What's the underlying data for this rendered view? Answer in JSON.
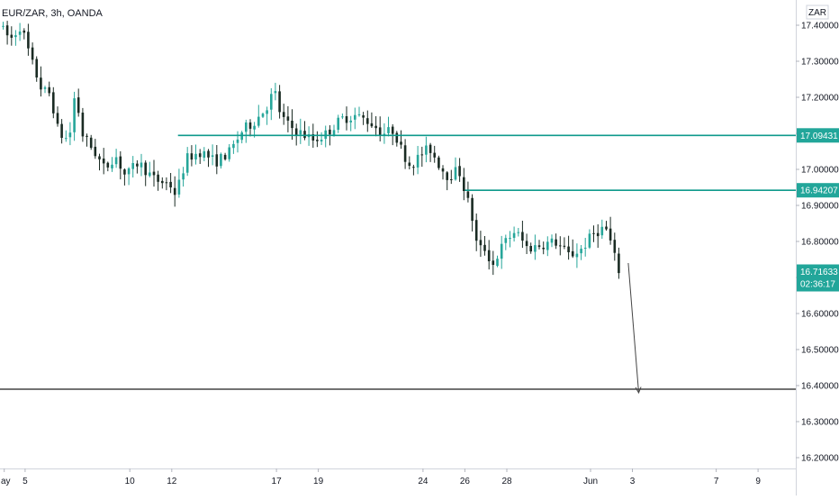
{
  "header": {
    "symbol_label": "EUR/ZAR, 3h, OANDA"
  },
  "currency_badge": "ZAR",
  "colors": {
    "up": "#26a69a",
    "down": "#1a2b23",
    "level_line": "#0f9a8c",
    "support_line": "#444444",
    "arrow": "#444444",
    "label_bg": "#22a69a",
    "text": "#131722",
    "axis_line": "#d1d4dc"
  },
  "chart_data": {
    "type": "candlestick",
    "y_ticks": [
      "17.40000",
      "17.30000",
      "17.20000",
      "17.10000",
      "17.00000",
      "16.90000",
      "16.80000",
      "16.70000",
      "16.60000",
      "16.50000",
      "16.40000",
      "16.30000",
      "16.20000"
    ],
    "y_tick_values": [
      17.4,
      17.3,
      17.2,
      17.1,
      17.0,
      16.9,
      16.8,
      16.7,
      16.6,
      16.5,
      16.4,
      16.3,
      16.2
    ],
    "ylim": [
      16.17,
      17.47
    ],
    "x_ticks": [
      "ay",
      "5",
      "10",
      "12",
      "17",
      "19",
      "24",
      "26",
      "28",
      "Jun",
      "3",
      "7",
      "9"
    ],
    "x_tick_days": [
      4,
      5,
      10,
      12,
      17,
      19,
      24,
      26,
      28,
      32,
      34,
      38,
      40
    ],
    "xlim": [
      3.8,
      41.8
    ],
    "candle_x_range": [
      3.95,
      33.5
    ],
    "price_points": [
      [
        3.95,
        17.4
      ],
      [
        4.5,
        17.36
      ],
      [
        5.0,
        17.4
      ],
      [
        5.5,
        17.3
      ],
      [
        6.0,
        17.22
      ],
      [
        6.4,
        17.21
      ],
      [
        6.8,
        17.1
      ],
      [
        7.3,
        17.08
      ],
      [
        7.6,
        17.22
      ],
      [
        7.9,
        17.1
      ],
      [
        8.5,
        17.05
      ],
      [
        9.0,
        17.0
      ],
      [
        9.5,
        17.04
      ],
      [
        10.0,
        16.98
      ],
      [
        10.6,
        17.02
      ],
      [
        11.4,
        16.97
      ],
      [
        12.1,
        16.96
      ],
      [
        12.4,
        16.93
      ],
      [
        12.9,
        17.03
      ],
      [
        13.6,
        17.05
      ],
      [
        14.3,
        17.02
      ],
      [
        15.0,
        17.05
      ],
      [
        15.6,
        17.11
      ],
      [
        16.1,
        17.13
      ],
      [
        16.7,
        17.17
      ],
      [
        17.1,
        17.22
      ],
      [
        17.4,
        17.15
      ],
      [
        17.8,
        17.12
      ],
      [
        18.4,
        17.1
      ],
      [
        19.0,
        17.08
      ],
      [
        19.6,
        17.1
      ],
      [
        20.3,
        17.14
      ],
      [
        21.0,
        17.15
      ],
      [
        21.7,
        17.13
      ],
      [
        22.3,
        17.1
      ],
      [
        22.8,
        17.11
      ],
      [
        23.2,
        17.05
      ],
      [
        23.6,
        17.01
      ],
      [
        24.1,
        17.04
      ],
      [
        24.5,
        17.06
      ],
      [
        25.0,
        17.01
      ],
      [
        25.4,
        16.98
      ],
      [
        25.9,
        17.0
      ],
      [
        26.2,
        16.94
      ],
      [
        26.5,
        16.88
      ],
      [
        26.8,
        16.78
      ],
      [
        27.2,
        16.78
      ],
      [
        27.5,
        16.73
      ],
      [
        28.0,
        16.79
      ],
      [
        28.6,
        16.83
      ],
      [
        29.2,
        16.78
      ],
      [
        29.8,
        16.79
      ],
      [
        30.5,
        16.8
      ],
      [
        31.2,
        16.76
      ],
      [
        31.8,
        16.78
      ],
      [
        32.3,
        16.82
      ],
      [
        32.9,
        16.84
      ],
      [
        33.2,
        16.79
      ],
      [
        33.5,
        16.72
      ]
    ],
    "horizontal_levels": [
      {
        "value": 17.09431,
        "label": "17.09431",
        "x_start": 12.3
      },
      {
        "value": 16.94207,
        "label": "16.94207",
        "x_start": 26.0
      }
    ],
    "support_level": {
      "value": 16.39,
      "x_start": 3.8
    },
    "last_price": {
      "value": 16.71633,
      "label": "16.71633",
      "countdown": "02:36:17"
    },
    "arrow": {
      "from": [
        33.8,
        16.74
      ],
      "to": [
        34.3,
        16.38
      ]
    }
  }
}
